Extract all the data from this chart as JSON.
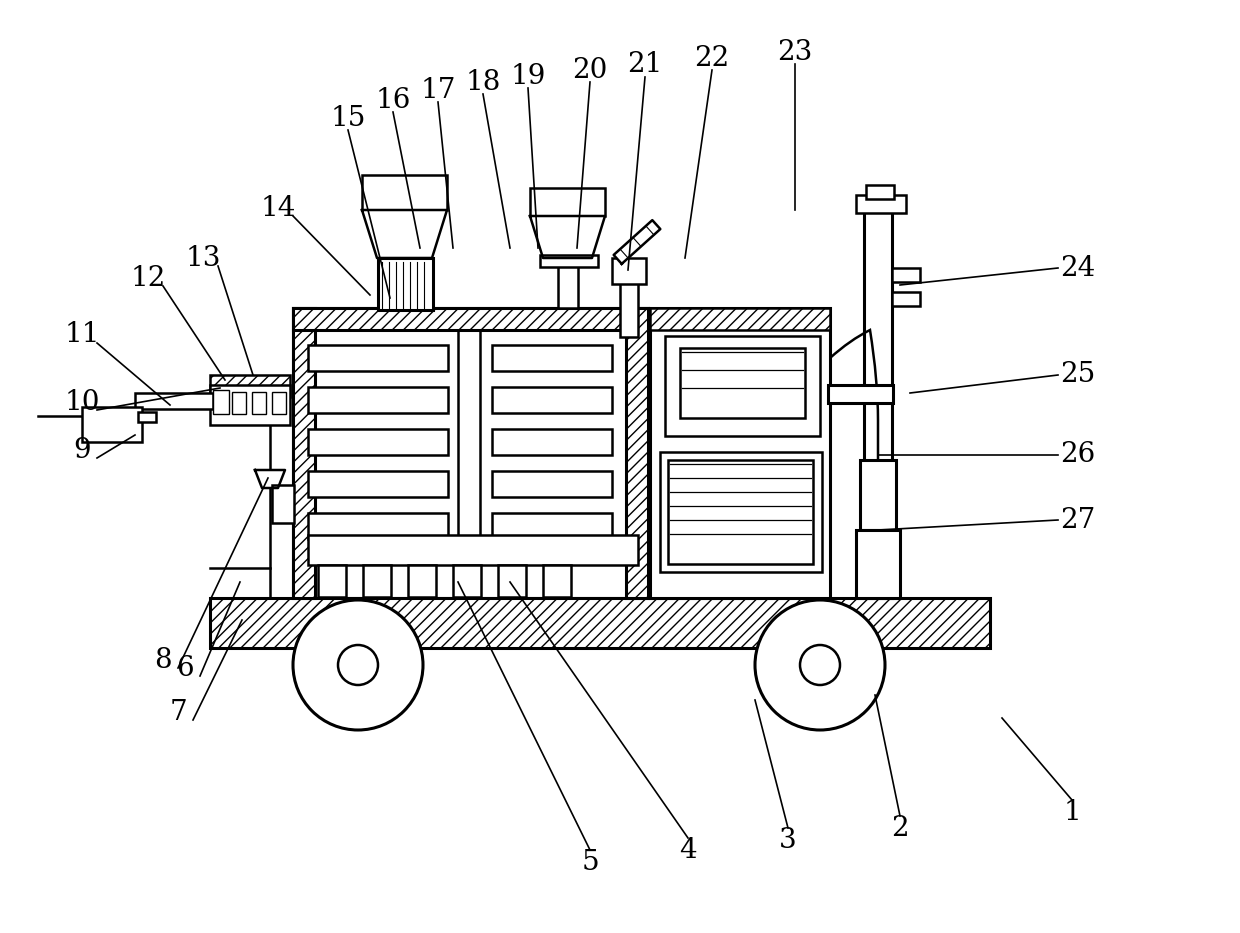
{
  "background_color": "#ffffff",
  "line_color": "#000000",
  "label_color": "#000000",
  "lw": 1.8,
  "lw2": 2.2,
  "label_fs": 20,
  "labels_top": [
    [
      "15",
      348,
      118,
      390,
      298
    ],
    [
      "16",
      393,
      100,
      420,
      248
    ],
    [
      "17",
      438,
      90,
      453,
      248
    ],
    [
      "18",
      483,
      82,
      510,
      248
    ],
    [
      "19",
      528,
      76,
      538,
      248
    ],
    [
      "20",
      590,
      70,
      577,
      248
    ],
    [
      "21",
      645,
      65,
      628,
      270
    ],
    [
      "22",
      712,
      58,
      685,
      258
    ],
    [
      "23",
      795,
      52,
      795,
      210
    ]
  ],
  "labels_left": [
    [
      "11",
      82,
      335,
      170,
      405
    ],
    [
      "12",
      148,
      278,
      225,
      380
    ],
    [
      "13",
      203,
      258,
      253,
      375
    ],
    [
      "14",
      278,
      208,
      370,
      295
    ],
    [
      "10",
      82,
      402,
      220,
      388
    ],
    [
      "9",
      82,
      450,
      135,
      435
    ],
    [
      "8",
      163,
      660,
      268,
      478
    ],
    [
      "7",
      178,
      712,
      242,
      620
    ],
    [
      "6",
      185,
      668,
      240,
      582
    ]
  ],
  "labels_right": [
    [
      "24",
      1078,
      268,
      900,
      285
    ],
    [
      "25",
      1078,
      375,
      910,
      393
    ],
    [
      "26",
      1078,
      455,
      878,
      455
    ],
    [
      "27",
      1078,
      520,
      878,
      530
    ]
  ],
  "labels_bottom": [
    [
      "1",
      1072,
      812,
      1002,
      718
    ],
    [
      "2",
      900,
      828,
      875,
      695
    ],
    [
      "3",
      788,
      840,
      755,
      700
    ],
    [
      "4",
      688,
      850,
      510,
      582
    ],
    [
      "5",
      590,
      862,
      458,
      582
    ]
  ]
}
